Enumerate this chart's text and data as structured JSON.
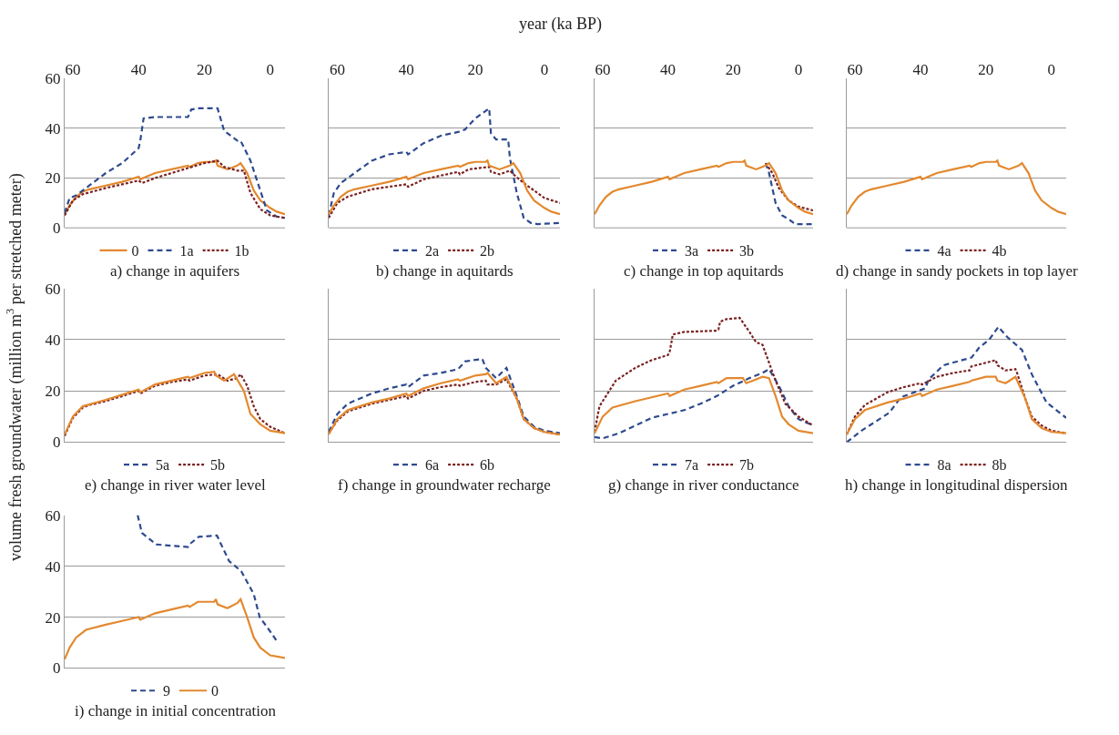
{
  "chart_data": [
    {
      "type": "line",
      "title": "a) change in aquifers",
      "ylabel": "volume fresh groundwater (million m$^{3}$ per stretched meter)",
      "xlim": [
        62.5,
        -4.5
      ],
      "xticks": [
        60,
        40,
        20,
        0
      ],
      "ylim": [
        0,
        60
      ],
      "yticks": [
        0,
        20,
        40,
        60
      ],
      "grid": "y",
      "legend": "bottom",
      "series": [
        {
          "name": "0",
          "color": "#e3892f",
          "line_style": "solid",
          "x": [
            62.5,
            61,
            59,
            57,
            55,
            50,
            45,
            40,
            39.5,
            35,
            30,
            25,
            24.5,
            22,
            20,
            17,
            16.5,
            16,
            13,
            10,
            9,
            7,
            5,
            3,
            0,
            -2,
            -4.5
          ],
          "values": [
            5.5,
            9,
            12.5,
            14.5,
            15.5,
            17,
            18.5,
            20.5,
            19.5,
            22,
            23.5,
            25,
            24.5,
            26,
            26.5,
            26.5,
            27,
            25,
            23.5,
            25,
            26,
            22,
            15,
            11,
            8,
            6.5,
            5.5
          ]
        },
        {
          "name": "1a",
          "color": "#2e4a8f",
          "line_style": "dashed",
          "x": [
            62.5,
            61,
            59,
            55,
            50,
            45,
            40,
            39.5,
            38.5,
            35,
            25,
            24,
            22,
            16,
            14,
            10,
            9,
            6,
            3,
            1,
            -2,
            -4.5
          ],
          "values": [
            6,
            12,
            13,
            17,
            22,
            26,
            32,
            35,
            44,
            44.5,
            44.5,
            47.5,
            48,
            48,
            39,
            35,
            35,
            27,
            15,
            7,
            4.5,
            4
          ]
        },
        {
          "name": "1b",
          "color": "#7b2222",
          "line_style": "dotted",
          "x": [
            62.5,
            60,
            57,
            50,
            45,
            40,
            39,
            35,
            30,
            25,
            20,
            16,
            14,
            10,
            8,
            6,
            3,
            0,
            -4.5
          ],
          "values": [
            5,
            11,
            13.5,
            16,
            17.5,
            19,
            18,
            20,
            22,
            24,
            26,
            27,
            24.5,
            23,
            23,
            14,
            7.5,
            5,
            4
          ]
        }
      ]
    },
    {
      "type": "line",
      "title": "b) change in aquitards",
      "xlabel": "year (ka BP)",
      "xlim": [
        62.5,
        -4.5
      ],
      "xticks": [
        60,
        40,
        20,
        0
      ],
      "ylim": [
        0,
        60
      ],
      "yticks": [
        0,
        20,
        40,
        60
      ],
      "grid": "y",
      "legend": "bottom",
      "tick_labels": "x",
      "series": [
        {
          "name": "2a",
          "color": "#2e4a8f",
          "line_style": "dashed",
          "x": [
            62.5,
            61,
            59,
            55,
            50,
            45,
            40,
            39.5,
            35,
            30,
            25,
            23,
            20,
            16,
            15.5,
            14,
            10.5,
            10,
            8,
            6,
            4,
            2,
            -4.5
          ],
          "values": [
            5,
            14,
            18,
            22,
            27,
            29.5,
            30.5,
            29.5,
            34,
            37,
            38.5,
            39.5,
            44,
            48,
            38,
            35.5,
            35.5,
            28,
            14,
            4,
            2,
            1.5,
            2
          ]
        },
        {
          "name": "2b",
          "color": "#7b2222",
          "line_style": "dotted",
          "x": [
            62.5,
            60,
            57,
            50,
            45,
            40,
            39.5,
            35,
            30,
            25,
            24.5,
            22,
            16,
            15.5,
            13,
            10,
            9,
            6,
            3,
            0,
            -4.5
          ],
          "values": [
            4,
            10,
            12.5,
            15.5,
            16.5,
            17.5,
            16.5,
            19.5,
            21,
            22.5,
            21.5,
            23.5,
            24.5,
            22.5,
            21.5,
            23,
            21.5,
            18,
            15,
            12,
            10
          ]
        },
        {
          "color": "#e3892f",
          "line_style": "solid",
          "x": [
            62.5,
            61,
            59,
            57,
            55,
            50,
            45,
            40,
            39.5,
            35,
            30,
            25,
            24.5,
            22,
            20,
            17,
            16.5,
            16,
            13,
            10,
            9,
            7,
            5,
            3,
            0,
            -2,
            -4.5
          ],
          "values": [
            5.5,
            9,
            12.5,
            14.5,
            15.5,
            17,
            18.5,
            20.5,
            19.5,
            22,
            23.5,
            25,
            24.5,
            26,
            26.5,
            26.5,
            27,
            25,
            23.5,
            25,
            26,
            22,
            15,
            11,
            8,
            6.5,
            5.5
          ]
        }
      ]
    },
    {
      "type": "line",
      "title": "c) change in top aquitards",
      "xlim": [
        62.5,
        -4.5
      ],
      "xticks": [
        60,
        40,
        20,
        0
      ],
      "ylim": [
        0,
        60
      ],
      "yticks": [
        0,
        20,
        40,
        60
      ],
      "grid": "y",
      "legend": "bottom",
      "tick_labels": "x",
      "series": [
        {
          "name": "3a",
          "color": "#2e4a8f",
          "line_style": "dashed",
          "x": [
            10,
            9,
            7,
            5,
            3,
            1,
            -4.5
          ],
          "values": [
            26,
            22,
            10,
            5,
            3.5,
            1.5,
            1.5
          ]
        },
        {
          "name": "3b",
          "color": "#7b2222",
          "line_style": "dotted",
          "x": [
            10,
            8,
            6,
            3,
            0,
            -4.5
          ],
          "values": [
            26,
            22,
            16,
            11,
            8.5,
            7
          ]
        },
        {
          "color": "#e3892f",
          "line_style": "solid",
          "x": [
            62.5,
            61,
            59,
            57,
            55,
            50,
            45,
            40,
            39.5,
            35,
            30,
            25,
            24.5,
            22,
            20,
            17,
            16.5,
            16,
            13,
            10,
            9,
            7,
            5,
            3,
            0,
            -2,
            -4.5
          ],
          "values": [
            5.5,
            9,
            12.5,
            14.5,
            15.5,
            17,
            18.5,
            20.5,
            19.5,
            22,
            23.5,
            25,
            24.5,
            26,
            26.5,
            26.5,
            27,
            25,
            23.5,
            25,
            26,
            22,
            15,
            11,
            8,
            6.5,
            5.5
          ]
        }
      ]
    },
    {
      "type": "line",
      "title": "d) change in sandy pockets in top layer",
      "xlim": [
        62.5,
        -4.5
      ],
      "xticks": [
        60,
        40,
        20,
        0
      ],
      "ylim": [
        0,
        60
      ],
      "yticks": [
        0,
        20,
        40,
        60
      ],
      "grid": "y",
      "legend": "bottom",
      "tick_labels": "x",
      "series": [
        {
          "name": "4a",
          "color": "#2e4a8f",
          "line_style": "dashed",
          "x": [
            null
          ],
          "values": [
            null
          ]
        },
        {
          "name": "4b",
          "color": "#7b2222",
          "line_style": "dotted",
          "x": [
            null
          ],
          "values": [
            null
          ]
        },
        {
          "color": "#e3892f",
          "line_style": "solid",
          "x": [
            62.5,
            61,
            59,
            57,
            55,
            50,
            45,
            40,
            39.5,
            35,
            30,
            25,
            24.5,
            22,
            20,
            17,
            16.5,
            16,
            13,
            10,
            9,
            7,
            5,
            3,
            0,
            -2,
            -4.5
          ],
          "values": [
            5.5,
            9,
            12.5,
            14.5,
            15.5,
            17,
            18.5,
            20.5,
            19.5,
            22,
            23.5,
            25,
            24.5,
            26,
            26.5,
            26.5,
            27,
            25,
            23.5,
            25,
            26,
            22,
            15,
            11,
            8,
            6.5,
            5.5
          ]
        }
      ]
    },
    {
      "type": "line",
      "title": "e) change in river water level",
      "xlim": [
        62.5,
        -4.5
      ],
      "ylim": [
        0,
        60
      ],
      "yticks": [
        0,
        20,
        40,
        60
      ],
      "grid": "y",
      "legend": "bottom",
      "tick_labels": "y",
      "series": [
        {
          "name": "5a",
          "color": "#2e4a8f",
          "line_style": "dashed",
          "x": [
            null
          ],
          "values": [
            null
          ]
        },
        {
          "name": "5b",
          "color": "#7b2222",
          "line_style": "dotted",
          "x": [
            62.5,
            60,
            57,
            55,
            50,
            45,
            40,
            39.5,
            35,
            30,
            25,
            24.5,
            20,
            16,
            13,
            10,
            9,
            7,
            5,
            3,
            0,
            -4.5
          ],
          "values": [
            2.5,
            9.5,
            13.5,
            14.5,
            16,
            18,
            20,
            19,
            22,
            23.5,
            24.5,
            24,
            26,
            26.5,
            24,
            25,
            26.5,
            22,
            14,
            9,
            6,
            3.5
          ]
        },
        {
          "color": "#e3892f",
          "line_style": "solid",
          "x": [
            62.5,
            60,
            57,
            50,
            45,
            40,
            39.5,
            35,
            30,
            25,
            24.5,
            20,
            17,
            16.5,
            14,
            11,
            8,
            6,
            3,
            0,
            -4.5
          ],
          "values": [
            3,
            10,
            14,
            16.5,
            18.5,
            20.5,
            19.5,
            22.5,
            24,
            25.5,
            25,
            27,
            27.5,
            26,
            24,
            26.5,
            20,
            11,
            7,
            4.5,
            3.5
          ]
        }
      ]
    },
    {
      "type": "line",
      "title": "f) change in groundwater recharge",
      "xlim": [
        62.5,
        -4.5
      ],
      "ylim": [
        0,
        60
      ],
      "yticks": [
        0,
        20,
        40,
        60
      ],
      "grid": "y",
      "legend": "bottom",
      "tick_labels": false,
      "series": [
        {
          "name": "6a",
          "color": "#2e4a8f",
          "line_style": "dashed",
          "x": [
            62.5,
            60,
            57,
            50,
            45,
            40,
            39.5,
            35,
            30,
            25,
            23,
            18,
            17,
            14,
            11,
            8,
            6,
            3,
            0,
            -4.5
          ],
          "values": [
            4,
            11,
            15,
            19,
            21,
            22.5,
            21.5,
            26,
            27,
            28.5,
            31.5,
            32.5,
            29,
            25,
            29,
            18,
            10,
            6,
            4.5,
            3.5
          ]
        },
        {
          "name": "6b",
          "color": "#7b2222",
          "line_style": "dotted",
          "x": [
            62.5,
            60,
            57,
            50,
            45,
            40,
            39.5,
            35,
            30,
            25,
            24.5,
            20,
            17,
            16.5,
            14,
            11,
            8,
            6,
            3,
            0,
            -4.5
          ],
          "values": [
            3.5,
            8.5,
            12,
            15,
            16.5,
            18,
            17,
            20,
            21.5,
            22.5,
            22,
            23.5,
            24,
            22.5,
            22.5,
            24.5,
            17,
            9,
            5.5,
            4,
            3
          ]
        },
        {
          "color": "#e3892f",
          "line_style": "solid",
          "x": [
            62.5,
            60,
            57,
            50,
            45,
            40,
            39.5,
            35,
            30,
            25,
            24.5,
            20,
            17,
            16.5,
            14,
            11,
            8,
            6,
            3,
            0,
            -4.5
          ],
          "values": [
            3,
            9,
            12.5,
            15.5,
            17,
            19,
            18,
            21,
            23,
            24.5,
            24,
            26,
            26.5,
            27,
            23,
            25.5,
            17,
            9,
            5.5,
            4,
            3
          ]
        }
      ]
    },
    {
      "type": "line",
      "title": "g) change in river conductance",
      "xlim": [
        62.5,
        -4.5
      ],
      "ylim": [
        0,
        60
      ],
      "yticks": [
        0,
        20,
        40,
        60
      ],
      "grid": "y",
      "legend": "bottom",
      "tick_labels": false,
      "series": [
        {
          "name": "7a",
          "color": "#2e4a8f",
          "line_style": "dashed",
          "x": [
            62.5,
            60,
            55,
            50,
            45,
            40,
            35,
            30,
            25,
            20,
            15,
            11,
            9,
            6,
            3,
            0,
            -4.5
          ],
          "values": [
            2,
            1.5,
            3.5,
            6.5,
            9.5,
            11,
            12.5,
            15,
            18,
            22,
            25,
            27,
            28.5,
            22,
            14,
            9,
            6.5
          ]
        },
        {
          "name": "7b",
          "color": "#7b2222",
          "line_style": "dotted",
          "x": [
            62.5,
            61,
            59,
            56,
            50,
            45,
            40,
            39.5,
            38.5,
            35,
            25,
            24.5,
            24,
            22,
            18,
            15,
            13,
            11,
            9,
            7,
            4,
            0,
            -4.5
          ],
          "values": [
            4,
            14,
            18,
            24,
            29,
            32,
            34,
            35,
            42,
            43,
            43.5,
            44,
            47,
            48,
            48.5,
            43,
            39,
            38,
            31,
            24,
            15,
            10,
            6.5
          ]
        },
        {
          "color": "#e3892f",
          "line_style": "solid",
          "x": [
            62.5,
            60,
            57,
            50,
            45,
            40,
            39.5,
            35,
            30,
            25,
            24.5,
            22,
            17,
            16,
            14,
            11,
            9,
            7,
            5,
            3,
            0,
            -4.5
          ],
          "values": [
            3.5,
            10,
            13.5,
            16,
            17.5,
            19,
            18,
            20.5,
            22,
            23.5,
            23,
            25,
            25,
            23,
            24,
            25.5,
            25,
            18,
            10,
            7,
            4.5,
            3.5
          ]
        }
      ]
    },
    {
      "type": "line",
      "title": "h) change in longitudinal dispersion",
      "xlim": [
        62.5,
        -4.5
      ],
      "ylim": [
        0,
        60
      ],
      "yticks": [
        0,
        20,
        40,
        60
      ],
      "grid": "y",
      "legend": "bottom",
      "tick_labels": false,
      "series": [
        {
          "name": "8a",
          "color": "#2e4a8f",
          "line_style": "dashed",
          "x": [
            62.5,
            58,
            49.5,
            46,
            41.8,
            38.5,
            37.5,
            33,
            24.4,
            22,
            19,
            16.2,
            13.5,
            9,
            6,
            1.5,
            -4.5
          ],
          "values": [
            0,
            4.5,
            11.5,
            17.5,
            19.5,
            21,
            24.5,
            30,
            33,
            37,
            40,
            45,
            41,
            36,
            26.5,
            15.5,
            9.5
          ]
        },
        {
          "name": "8b",
          "color": "#7b2222",
          "line_style": "dotted",
          "x": [
            62.5,
            60,
            57,
            50,
            45,
            40,
            39.5,
            35,
            30,
            25,
            24.5,
            20,
            17,
            16.5,
            14,
            11,
            10.5,
            8,
            6,
            3,
            0,
            -4.5
          ],
          "values": [
            3,
            10,
            14.5,
            19.5,
            21.5,
            23,
            22.5,
            25.5,
            27,
            28,
            29.5,
            31,
            32,
            30,
            28,
            28.5,
            27,
            17,
            10,
            6.5,
            4.5,
            3.5
          ]
        },
        {
          "color": "#e3892f",
          "line_style": "solid",
          "x": [
            62.5,
            60,
            57,
            50,
            45,
            40,
            39.5,
            35,
            30,
            25,
            24.5,
            20,
            17,
            16.5,
            14,
            11,
            8,
            6,
            3,
            0,
            -4.5
          ],
          "values": [
            3,
            9,
            12.5,
            15.5,
            17,
            19,
            18,
            20.5,
            22,
            23.5,
            24,
            25.5,
            25.5,
            24,
            23,
            25.5,
            17,
            9,
            5.5,
            4,
            3.5
          ]
        }
      ]
    },
    {
      "type": "line",
      "title": "i) change in initial concentration",
      "xlim": [
        62.5,
        -4.5
      ],
      "ylim": [
        0,
        60
      ],
      "yticks": [
        0,
        20,
        40,
        60
      ],
      "grid": "y",
      "legend": "bottom",
      "tick_labels": "y",
      "series": [
        {
          "name": "9",
          "color": "#2e4a8f",
          "line_style": "dashed",
          "x": [
            40.3,
            39,
            34.6,
            30,
            25,
            24.6,
            21.7,
            16.2,
            12.5,
            8.8,
            5,
            3.2,
            -0.5,
            -2.3
          ],
          "values": [
            60,
            53,
            48.5,
            48,
            47.5,
            48.5,
            51.5,
            52,
            42,
            38,
            29,
            20,
            13.5,
            10
          ]
        },
        {
          "name": "0",
          "color": "#e3892f",
          "line_style": "solid",
          "x": [
            62.5,
            61,
            59,
            56,
            50,
            45,
            40,
            39.5,
            35,
            30,
            25,
            24.5,
            22,
            17,
            16.5,
            16,
            13,
            10,
            9,
            7,
            5,
            3,
            0,
            -4.5
          ],
          "values": [
            3.5,
            8,
            12,
            15,
            17,
            18.5,
            20,
            19,
            21.5,
            23,
            24.5,
            24,
            26,
            26,
            27,
            25,
            23.5,
            25.5,
            27,
            20,
            12,
            8,
            5,
            4
          ]
        }
      ]
    }
  ]
}
